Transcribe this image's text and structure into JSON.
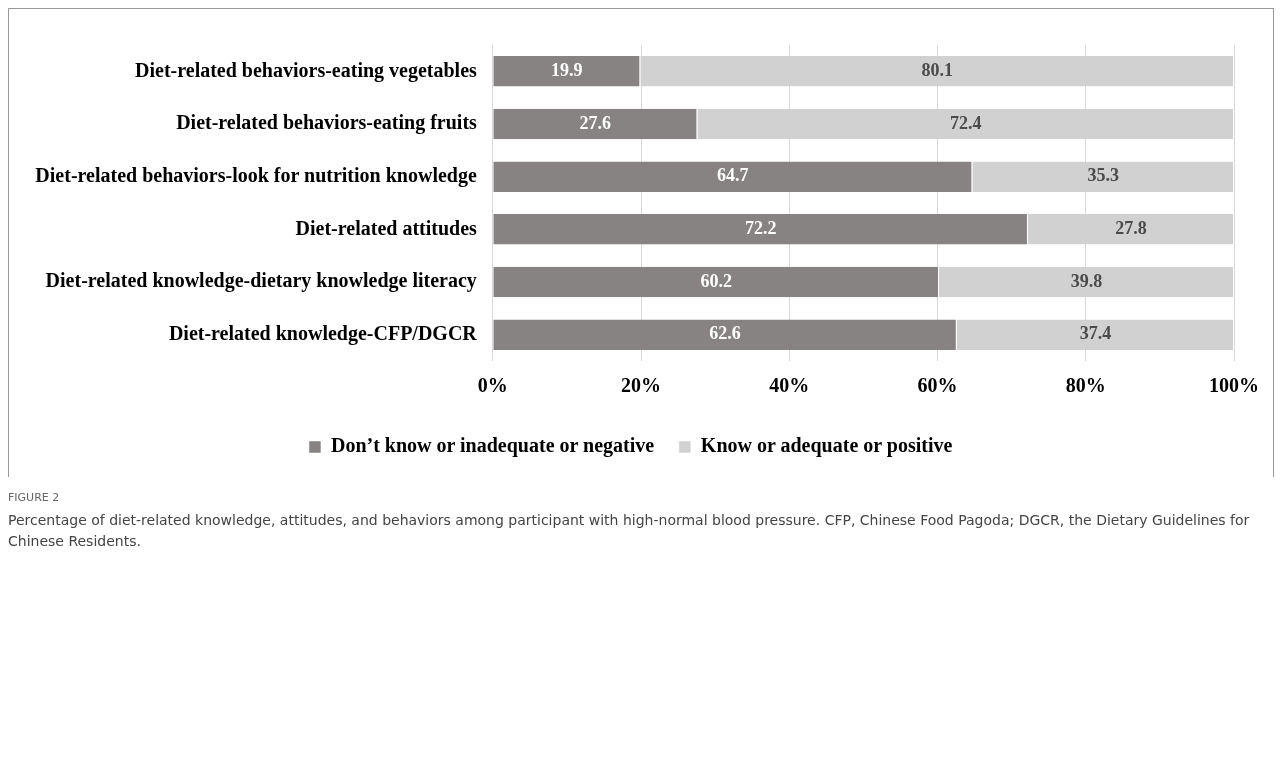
{
  "chart_data": {
    "type": "bar",
    "orientation": "horizontal",
    "stacked": true,
    "categories": [
      "Diet-related behaviors-eating vegetables",
      "Diet-related behaviors-eating fruits",
      "Diet-related behaviors-look for nutrition knowledge",
      "Diet-related attitudes",
      "Diet-related knowledge-dietary knowledge literacy",
      "Diet-related knowledge-CFP/DGCR"
    ],
    "series": [
      {
        "name": "Don’t know or inadequate or negative",
        "color": "#878383",
        "values": [
          19.9,
          27.6,
          64.7,
          72.2,
          60.2,
          62.6
        ]
      },
      {
        "name": "Know or adequate or positive",
        "color": "#d1d1d1",
        "values": [
          80.1,
          72.4,
          35.3,
          27.8,
          39.8,
          37.4
        ]
      }
    ],
    "xlim": [
      0,
      100
    ],
    "xticks": [
      {
        "value": 0,
        "label": "0%"
      },
      {
        "value": 20,
        "label": "20%"
      },
      {
        "value": 40,
        "label": "40%"
      },
      {
        "value": 60,
        "label": "60%"
      },
      {
        "value": 80,
        "label": "80%"
      },
      {
        "value": 100,
        "label": "100%"
      }
    ],
    "grid": "x",
    "data_labels": true,
    "legend": "bottom",
    "annotations": [
      "FIGURE 2",
      "Percentage of diet-related knowledge, attitudes, and behaviors among participant with high-normal blood pressure. CFP, Chinese Food Pagoda; DGCR, the Dietary Guidelines for Chinese Residents."
    ]
  }
}
